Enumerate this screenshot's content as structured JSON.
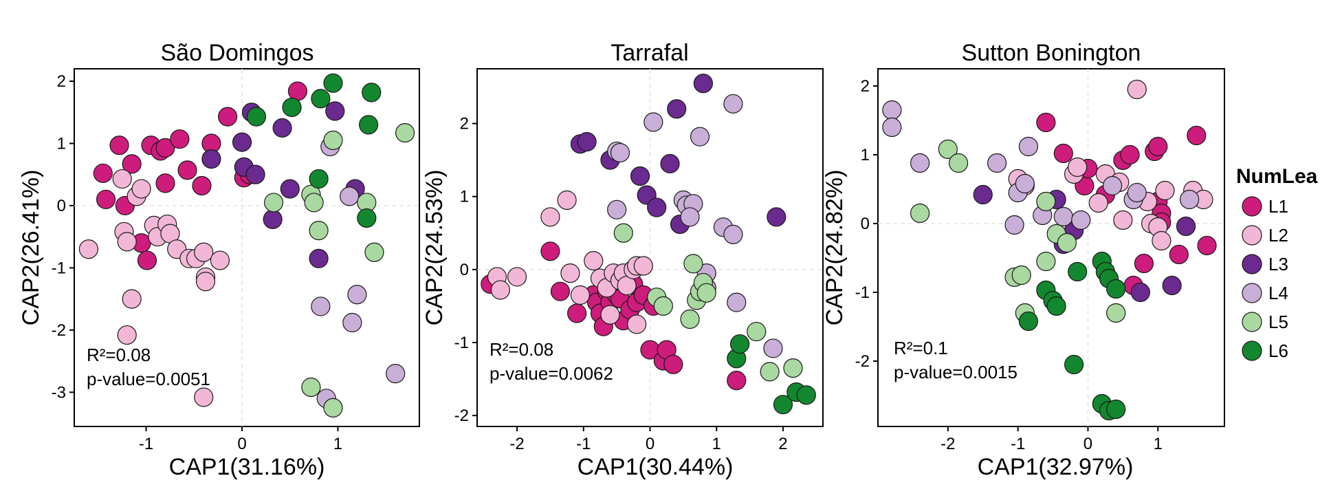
{
  "legend": {
    "title": "NumLea",
    "items": [
      {
        "label": "L1",
        "color": "#CE1C7C"
      },
      {
        "label": "L2",
        "color": "#F2B7D6"
      },
      {
        "label": "L3",
        "color": "#6A2A8F"
      },
      {
        "label": "L4",
        "color": "#C9AED8"
      },
      {
        "label": "L5",
        "color": "#A9D8A0"
      },
      {
        "label": "L6",
        "color": "#13872F"
      }
    ]
  },
  "chart_data": [
    {
      "type": "scatter",
      "title": "São Domingos",
      "xlabel": "CAP1(31.16%)",
      "ylabel": "CAP2(26.41%)",
      "xlim": [
        -1.75,
        1.85
      ],
      "ylim": [
        -3.55,
        2.2
      ],
      "xticks": [
        -1,
        0,
        1
      ],
      "yticks": [
        -3,
        -2,
        -1,
        0,
        1,
        2
      ],
      "annotations": [
        "R²=0.08",
        "p-value=0.0051"
      ],
      "series": [
        {
          "name": "L1",
          "points": [
            [
              -1.45,
              0.52
            ],
            [
              -1.42,
              0.1
            ],
            [
              -1.28,
              0.97
            ],
            [
              -1.22,
              0.0
            ],
            [
              -1.15,
              0.67
            ],
            [
              -1.05,
              -0.6
            ],
            [
              -0.95,
              0.97
            ],
            [
              -0.85,
              0.88
            ],
            [
              -0.8,
              0.93
            ],
            [
              -0.8,
              0.36
            ],
            [
              -0.65,
              1.07
            ],
            [
              -0.57,
              0.57
            ],
            [
              -0.42,
              0.32
            ],
            [
              -0.32,
              1.0
            ],
            [
              -0.15,
              1.43
            ],
            [
              0.02,
              0.45
            ],
            [
              0.08,
              0.5
            ],
            [
              0.58,
              1.84
            ],
            [
              -0.99,
              -0.88
            ]
          ]
        },
        {
          "name": "L2",
          "points": [
            [
              -1.6,
              -0.7
            ],
            [
              -1.25,
              0.43
            ],
            [
              -1.23,
              -0.42
            ],
            [
              -1.2,
              -0.58
            ],
            [
              -1.2,
              -2.08
            ],
            [
              -1.15,
              -1.5
            ],
            [
              -1.1,
              0.15
            ],
            [
              -1.05,
              0.27
            ],
            [
              -0.92,
              -0.32
            ],
            [
              -0.88,
              -0.5
            ],
            [
              -0.78,
              -0.3
            ],
            [
              -0.75,
              -0.45
            ],
            [
              -0.68,
              -0.7
            ],
            [
              -0.55,
              -0.85
            ],
            [
              -0.48,
              -0.85
            ],
            [
              -0.4,
              -0.75
            ],
            [
              -0.38,
              -1.15
            ],
            [
              -0.38,
              -1.22
            ],
            [
              -0.23,
              -0.88
            ],
            [
              -0.4,
              -3.08
            ]
          ]
        },
        {
          "name": "L3",
          "points": [
            [
              -0.32,
              0.75
            ],
            [
              0.0,
              1.02
            ],
            [
              0.02,
              0.62
            ],
            [
              0.1,
              1.5
            ],
            [
              0.14,
              0.5
            ],
            [
              0.32,
              -0.22
            ],
            [
              0.42,
              1.25
            ],
            [
              0.5,
              0.27
            ],
            [
              0.8,
              -0.85
            ],
            [
              0.97,
              1.52
            ],
            [
              1.18,
              0.27
            ]
          ]
        },
        {
          "name": "L4",
          "points": [
            [
              0.92,
              0.95
            ],
            [
              1.12,
              0.15
            ],
            [
              1.15,
              -1.88
            ],
            [
              1.2,
              -1.43
            ],
            [
              0.82,
              -1.62
            ],
            [
              0.88,
              -3.1
            ],
            [
              1.6,
              -2.7
            ]
          ]
        },
        {
          "name": "L5",
          "points": [
            [
              0.33,
              0.05
            ],
            [
              0.72,
              0.18
            ],
            [
              0.75,
              0.05
            ],
            [
              0.72,
              -2.92
            ],
            [
              0.8,
              -0.4
            ],
            [
              0.95,
              1.05
            ],
            [
              1.3,
              0.05
            ],
            [
              1.38,
              -0.75
            ],
            [
              1.7,
              1.17
            ],
            [
              0.95,
              -3.25
            ]
          ]
        },
        {
          "name": "L6",
          "points": [
            [
              0.15,
              1.43
            ],
            [
              0.52,
              1.58
            ],
            [
              0.8,
              0.43
            ],
            [
              0.82,
              1.72
            ],
            [
              0.95,
              1.97
            ],
            [
              1.32,
              1.3
            ],
            [
              1.35,
              1.82
            ],
            [
              1.3,
              -0.2
            ]
          ]
        }
      ]
    },
    {
      "type": "scatter",
      "title": "Tarrafal",
      "xlabel": "CAP1(30.44%)",
      "ylabel": "CAP2(24.53%)",
      "xlim": [
        -2.6,
        2.6
      ],
      "ylim": [
        -2.15,
        2.75
      ],
      "xticks": [
        -2,
        -1,
        0,
        1,
        2
      ],
      "yticks": [
        -2,
        -1,
        0,
        1,
        2
      ],
      "annotations": [
        "R²=0.08",
        "p-value=0.0062"
      ],
      "series": [
        {
          "name": "L1",
          "points": [
            [
              -2.4,
              -0.2
            ],
            [
              -1.5,
              0.25
            ],
            [
              -1.35,
              -0.3
            ],
            [
              -1.1,
              -0.6
            ],
            [
              -0.85,
              -0.35
            ],
            [
              -0.8,
              -0.45
            ],
            [
              -0.75,
              -0.6
            ],
            [
              -0.65,
              -0.3
            ],
            [
              -0.6,
              -0.45
            ],
            [
              -0.55,
              -0.15
            ],
            [
              -0.5,
              -0.35
            ],
            [
              -0.45,
              -0.4
            ],
            [
              -0.4,
              -0.7
            ],
            [
              -0.3,
              -0.55
            ],
            [
              -0.25,
              -0.2
            ],
            [
              -0.2,
              -0.45
            ],
            [
              -0.1,
              -0.35
            ],
            [
              0.05,
              -0.5
            ],
            [
              0.0,
              -1.1
            ],
            [
              0.2,
              -1.25
            ],
            [
              0.25,
              -1.1
            ],
            [
              0.35,
              -1.3
            ],
            [
              -0.7,
              -0.78
            ],
            [
              1.3,
              -1.52
            ]
          ]
        },
        {
          "name": "L2",
          "points": [
            [
              -2.3,
              -0.1
            ],
            [
              -2.25,
              -0.28
            ],
            [
              -2.0,
              -0.1
            ],
            [
              -1.5,
              0.72
            ],
            [
              -1.25,
              0.95
            ],
            [
              -1.2,
              -0.05
            ],
            [
              -1.05,
              -0.35
            ],
            [
              -0.85,
              0.12
            ],
            [
              -0.75,
              -0.12
            ],
            [
              -0.65,
              -0.25
            ],
            [
              -0.55,
              -0.05
            ],
            [
              -0.45,
              -0.15
            ],
            [
              -0.4,
              -0.05
            ],
            [
              -0.35,
              -0.22
            ],
            [
              -0.25,
              0.0
            ],
            [
              -0.2,
              0.05
            ],
            [
              -0.1,
              0.05
            ],
            [
              -0.2,
              -0.75
            ],
            [
              -0.6,
              -0.62
            ]
          ]
        },
        {
          "name": "L3",
          "points": [
            [
              -1.05,
              1.72
            ],
            [
              -0.95,
              1.75
            ],
            [
              -0.6,
              1.5
            ],
            [
              -0.15,
              1.28
            ],
            [
              -0.05,
              1.02
            ],
            [
              0.1,
              0.85
            ],
            [
              0.3,
              1.45
            ],
            [
              0.4,
              2.2
            ],
            [
              0.8,
              2.55
            ],
            [
              0.45,
              0.62
            ],
            [
              1.9,
              0.72
            ]
          ]
        },
        {
          "name": "L4",
          "points": [
            [
              -0.5,
              1.62
            ],
            [
              -0.45,
              1.6
            ],
            [
              -0.5,
              0.82
            ],
            [
              0.05,
              2.02
            ],
            [
              0.5,
              0.95
            ],
            [
              0.55,
              0.88
            ],
            [
              0.65,
              0.9
            ],
            [
              0.75,
              1.82
            ],
            [
              0.6,
              0.72
            ],
            [
              1.25,
              2.27
            ],
            [
              1.1,
              0.58
            ],
            [
              1.25,
              0.48
            ],
            [
              0.85,
              -0.05
            ],
            [
              0.85,
              -0.25
            ],
            [
              1.3,
              -0.45
            ],
            [
              1.85,
              -1.08
            ]
          ]
        },
        {
          "name": "L5",
          "points": [
            [
              -0.4,
              0.5
            ],
            [
              0.1,
              -0.38
            ],
            [
              0.2,
              -0.5
            ],
            [
              0.6,
              -0.68
            ],
            [
              0.65,
              0.08
            ],
            [
              0.7,
              -0.42
            ],
            [
              0.75,
              -0.3
            ],
            [
              0.8,
              -0.18
            ],
            [
              0.85,
              -0.32
            ],
            [
              1.6,
              -0.85
            ],
            [
              1.8,
              -1.4
            ],
            [
              2.15,
              -1.35
            ]
          ]
        },
        {
          "name": "L6",
          "points": [
            [
              1.3,
              -1.22
            ],
            [
              1.35,
              -1.02
            ],
            [
              2.0,
              -1.85
            ],
            [
              2.2,
              -1.68
            ],
            [
              2.35,
              -1.72
            ]
          ]
        }
      ]
    },
    {
      "type": "scatter",
      "title": "Sutton Bonington",
      "xlabel": "CAP1(32.97%)",
      "ylabel": "CAP2(24.82%)",
      "xlim": [
        -3.0,
        1.95
      ],
      "ylim": [
        -2.95,
        2.25
      ],
      "xticks": [
        -2,
        -1,
        0,
        1
      ],
      "yticks": [
        -2,
        -1,
        0,
        1,
        2
      ],
      "annotations": [
        "R²=0.1",
        "p-value=0.0015"
      ],
      "series": [
        {
          "name": "L1",
          "points": [
            [
              -0.6,
              1.47
            ],
            [
              -0.35,
              1.02
            ],
            [
              -0.05,
              0.55
            ],
            [
              0.0,
              0.8
            ],
            [
              0.25,
              0.42
            ],
            [
              0.5,
              0.92
            ],
            [
              0.6,
              1.0
            ],
            [
              0.65,
              -0.9
            ],
            [
              0.95,
              1.05
            ],
            [
              1.0,
              1.12
            ],
            [
              1.0,
              0.32
            ],
            [
              1.05,
              0.15
            ],
            [
              1.05,
              0.02
            ],
            [
              1.55,
              1.28
            ],
            [
              1.7,
              -0.32
            ],
            [
              1.3,
              -0.45
            ],
            [
              0.8,
              -0.58
            ]
          ]
        },
        {
          "name": "L2",
          "points": [
            [
              -1.0,
              0.65
            ],
            [
              -0.9,
              0.55
            ],
            [
              -0.2,
              0.72
            ],
            [
              -0.15,
              0.82
            ],
            [
              0.15,
              0.3
            ],
            [
              0.25,
              0.72
            ],
            [
              0.45,
              0.6
            ],
            [
              0.5,
              0.05
            ],
            [
              0.85,
              0.32
            ],
            [
              0.9,
              0.0
            ],
            [
              1.0,
              -0.05
            ],
            [
              1.05,
              -0.25
            ],
            [
              1.1,
              0.48
            ],
            [
              1.5,
              0.48
            ],
            [
              1.65,
              0.35
            ],
            [
              0.7,
              1.95
            ]
          ]
        },
        {
          "name": "L3",
          "points": [
            [
              -1.5,
              0.42
            ],
            [
              -0.45,
              0.35
            ],
            [
              -0.35,
              -0.3
            ],
            [
              -0.2,
              -0.1
            ],
            [
              0.75,
              -1.0
            ],
            [
              1.2,
              -0.9
            ],
            [
              1.4,
              -0.04
            ]
          ]
        },
        {
          "name": "L4",
          "points": [
            [
              -2.8,
              1.65
            ],
            [
              -2.8,
              1.4
            ],
            [
              -2.4,
              0.88
            ],
            [
              -1.3,
              0.88
            ],
            [
              -0.85,
              1.12
            ],
            [
              -1.0,
              0.45
            ],
            [
              -0.9,
              0.58
            ],
            [
              -1.05,
              -0.02
            ],
            [
              -0.35,
              0.1
            ],
            [
              -0.1,
              0.05
            ],
            [
              0.35,
              0.55
            ],
            [
              0.65,
              0.35
            ],
            [
              0.7,
              0.45
            ],
            [
              1.45,
              0.35
            ],
            [
              -0.65,
              0.12
            ]
          ]
        },
        {
          "name": "L5",
          "points": [
            [
              -2.4,
              0.15
            ],
            [
              -2.0,
              1.08
            ],
            [
              -1.85,
              0.88
            ],
            [
              -1.05,
              -0.78
            ],
            [
              -0.95,
              -0.75
            ],
            [
              -0.9,
              -1.3
            ],
            [
              -0.6,
              0.32
            ],
            [
              -0.6,
              -0.55
            ],
            [
              -0.45,
              -0.15
            ],
            [
              -0.3,
              -0.28
            ],
            [
              0.4,
              -1.3
            ]
          ]
        },
        {
          "name": "L6",
          "points": [
            [
              -0.85,
              -1.42
            ],
            [
              -0.6,
              -0.97
            ],
            [
              -0.5,
              -1.12
            ],
            [
              -0.45,
              -1.2
            ],
            [
              -0.15,
              -0.7
            ],
            [
              0.2,
              -0.55
            ],
            [
              0.25,
              -0.7
            ],
            [
              0.3,
              -0.8
            ],
            [
              0.4,
              -0.95
            ],
            [
              -0.2,
              -2.05
            ],
            [
              0.2,
              -2.62
            ],
            [
              0.3,
              -2.72
            ],
            [
              0.4,
              -2.7
            ]
          ]
        }
      ]
    }
  ]
}
